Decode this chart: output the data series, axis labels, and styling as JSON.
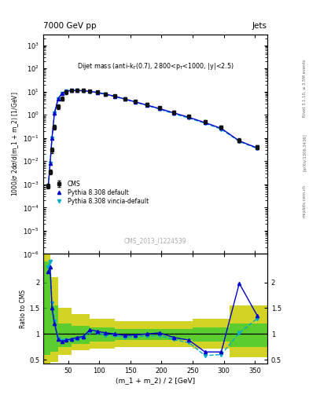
{
  "title_top": "7000 GeV pp",
  "title_right": "Jets",
  "annotation": "Dijet mass (anti-k$_T$(0.7), 2800<p$_T$<1000, |y|<2.5)",
  "cms_label": "CMS_2013_I1224539",
  "ylabel_top": "1000/σ 2dσ/d(m_1 + m_2) [1/GeV]",
  "ylabel_bot": "Ratio to CMS",
  "xlabel": "(m_1 + m_2) / 2 [GeV]",
  "rivet_label": "Rivet 3.1.10, ≥ 3.5M events",
  "arxiv_label": "[arXiv:1306.3436]",
  "mcplots_label": "mcplots.cern.ch",
  "x_cms": [
    18,
    21,
    24,
    28,
    34,
    40,
    47,
    55,
    64,
    74,
    85,
    97,
    110,
    125,
    141,
    158,
    177,
    197,
    220,
    244,
    270,
    296,
    325,
    354
  ],
  "y_cms": [
    0.00085,
    0.0035,
    0.03,
    0.3,
    2.2,
    5.0,
    9.5,
    11.0,
    11.5,
    11.5,
    10.5,
    9.5,
    8.0,
    6.5,
    5.0,
    3.8,
    2.8,
    2.0,
    1.3,
    0.85,
    0.5,
    0.3,
    0.08,
    0.04
  ],
  "y_cms_err": [
    0.0002,
    0.0008,
    0.007,
    0.07,
    0.5,
    1.0,
    1.5,
    1.5,
    1.5,
    1.5,
    1.3,
    1.2,
    1.0,
    0.8,
    0.6,
    0.5,
    0.4,
    0.3,
    0.2,
    0.1,
    0.07,
    0.04,
    0.015,
    0.008
  ],
  "x_py": [
    18,
    21,
    24,
    28,
    34,
    40,
    47,
    55,
    64,
    74,
    85,
    97,
    110,
    125,
    141,
    158,
    177,
    197,
    220,
    244,
    270,
    296,
    325,
    354
  ],
  "y_py": [
    0.00085,
    0.008,
    0.1,
    1.2,
    5.0,
    8.5,
    10.5,
    11.2,
    11.2,
    11.0,
    10.2,
    9.2,
    7.8,
    6.3,
    4.8,
    3.6,
    2.6,
    1.85,
    1.2,
    0.78,
    0.46,
    0.26,
    0.075,
    0.037
  ],
  "x_vc": [
    18,
    21,
    24,
    28,
    34,
    40,
    47,
    55,
    64,
    74,
    85,
    97,
    110,
    125,
    141,
    158,
    177,
    197,
    220,
    244,
    270,
    296,
    325,
    354
  ],
  "y_vc": [
    0.00085,
    0.008,
    0.1,
    1.2,
    5.0,
    8.5,
    10.5,
    11.0,
    11.0,
    10.8,
    10.0,
    9.0,
    7.6,
    6.1,
    4.7,
    3.5,
    2.5,
    1.75,
    1.1,
    0.72,
    0.43,
    0.24,
    0.07,
    0.035
  ],
  "ratio_x": [
    18,
    21,
    24,
    28,
    34,
    40,
    47,
    55,
    64,
    74,
    85,
    97,
    110,
    125,
    141,
    158,
    177,
    197,
    220,
    244,
    270,
    296,
    325,
    354
  ],
  "ratio_py": [
    2.2,
    2.3,
    1.5,
    1.2,
    0.9,
    0.85,
    0.88,
    0.9,
    0.93,
    0.95,
    1.08,
    1.05,
    1.02,
    1.0,
    0.97,
    0.98,
    1.0,
    1.02,
    0.93,
    0.88,
    0.65,
    0.65,
    1.98,
    1.35
  ],
  "ratio_vc": [
    2.3,
    2.4,
    1.6,
    1.25,
    0.92,
    0.87,
    0.88,
    0.88,
    0.9,
    0.93,
    1.04,
    1.02,
    0.98,
    0.97,
    0.93,
    0.95,
    0.96,
    0.97,
    0.89,
    0.83,
    0.58,
    0.6,
    1.02,
    1.3
  ],
  "band_x_edges": [
    10,
    21,
    34,
    55,
    85,
    125,
    177,
    250,
    310,
    370
  ],
  "band_green_lo": [
    0.6,
    0.65,
    0.75,
    0.8,
    0.85,
    0.88,
    0.88,
    0.85,
    0.75,
    0.65
  ],
  "band_green_hi": [
    2.4,
    1.55,
    1.2,
    1.15,
    1.12,
    1.1,
    1.1,
    1.12,
    1.2,
    1.9
  ],
  "band_yellow_lo": [
    0.35,
    0.45,
    0.6,
    0.68,
    0.72,
    0.75,
    0.75,
    0.72,
    0.55,
    0.38
  ],
  "band_yellow_hi": [
    3.2,
    2.1,
    1.5,
    1.38,
    1.3,
    1.25,
    1.25,
    1.3,
    1.55,
    2.8
  ],
  "color_cms": "#111111",
  "color_py": "#0000cc",
  "color_vc": "#00aacc",
  "color_green": "#33cc33",
  "color_yellow": "#cccc00",
  "bg_color": "#ffffff"
}
